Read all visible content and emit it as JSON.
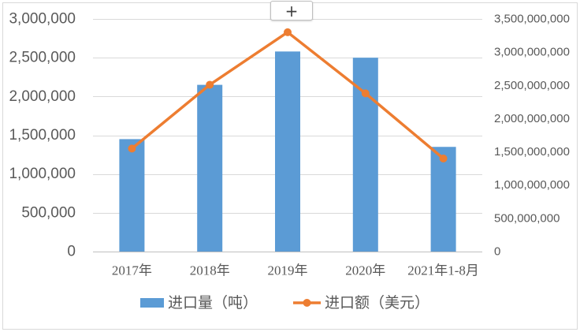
{
  "chart_toolbar": {
    "add_element_button": "+"
  },
  "colors": {
    "volume_bar": "#5B9BD5",
    "value_line": "#ED7D31",
    "gridline": "#D9D9D9",
    "axis_line": "#BFBFBF",
    "axis_text": "#595959"
  },
  "chart_data": {
    "type": "bar",
    "categories": [
      "2017年",
      "2018年",
      "2019年",
      "2020年",
      "2021年1-8月"
    ],
    "series": [
      {
        "name": "进口量（吨）",
        "type": "bar",
        "axis": "left",
        "values": [
          1450000,
          2150000,
          2580000,
          2500000,
          1350000
        ]
      },
      {
        "name": "进口额（美元）",
        "type": "line",
        "axis": "right",
        "values": [
          1550000000,
          2510000000,
          3300000000,
          2380000000,
          1400000000
        ]
      }
    ],
    "y_left": {
      "range": [
        0,
        3000000
      ],
      "ticks": [
        {
          "value": 0,
          "label": "0"
        },
        {
          "value": 500000,
          "label": "500,000"
        },
        {
          "value": 1000000,
          "label": "1,000,000"
        },
        {
          "value": 1500000,
          "label": "1,500,000"
        },
        {
          "value": 2000000,
          "label": "2,000,000"
        },
        {
          "value": 2500000,
          "label": "2,500,000"
        },
        {
          "value": 3000000,
          "label": "3,000,000"
        }
      ]
    },
    "y_right": {
      "range": [
        0,
        3500000000
      ],
      "ticks": [
        {
          "value": 0,
          "label": "0"
        },
        {
          "value": 500000000,
          "label": "500,000,000"
        },
        {
          "value": 1000000000,
          "label": "1,000,000,000"
        },
        {
          "value": 1500000000,
          "label": "1,500,000,000"
        },
        {
          "value": 2000000000,
          "label": "2,000,000,000"
        },
        {
          "value": 2500000000,
          "label": "2,500,000,000"
        },
        {
          "value": 3000000000,
          "label": "3,000,000,000"
        },
        {
          "value": 3500000000,
          "label": "3,500,000,000"
        }
      ]
    },
    "grid": true,
    "legend": "bottom"
  }
}
